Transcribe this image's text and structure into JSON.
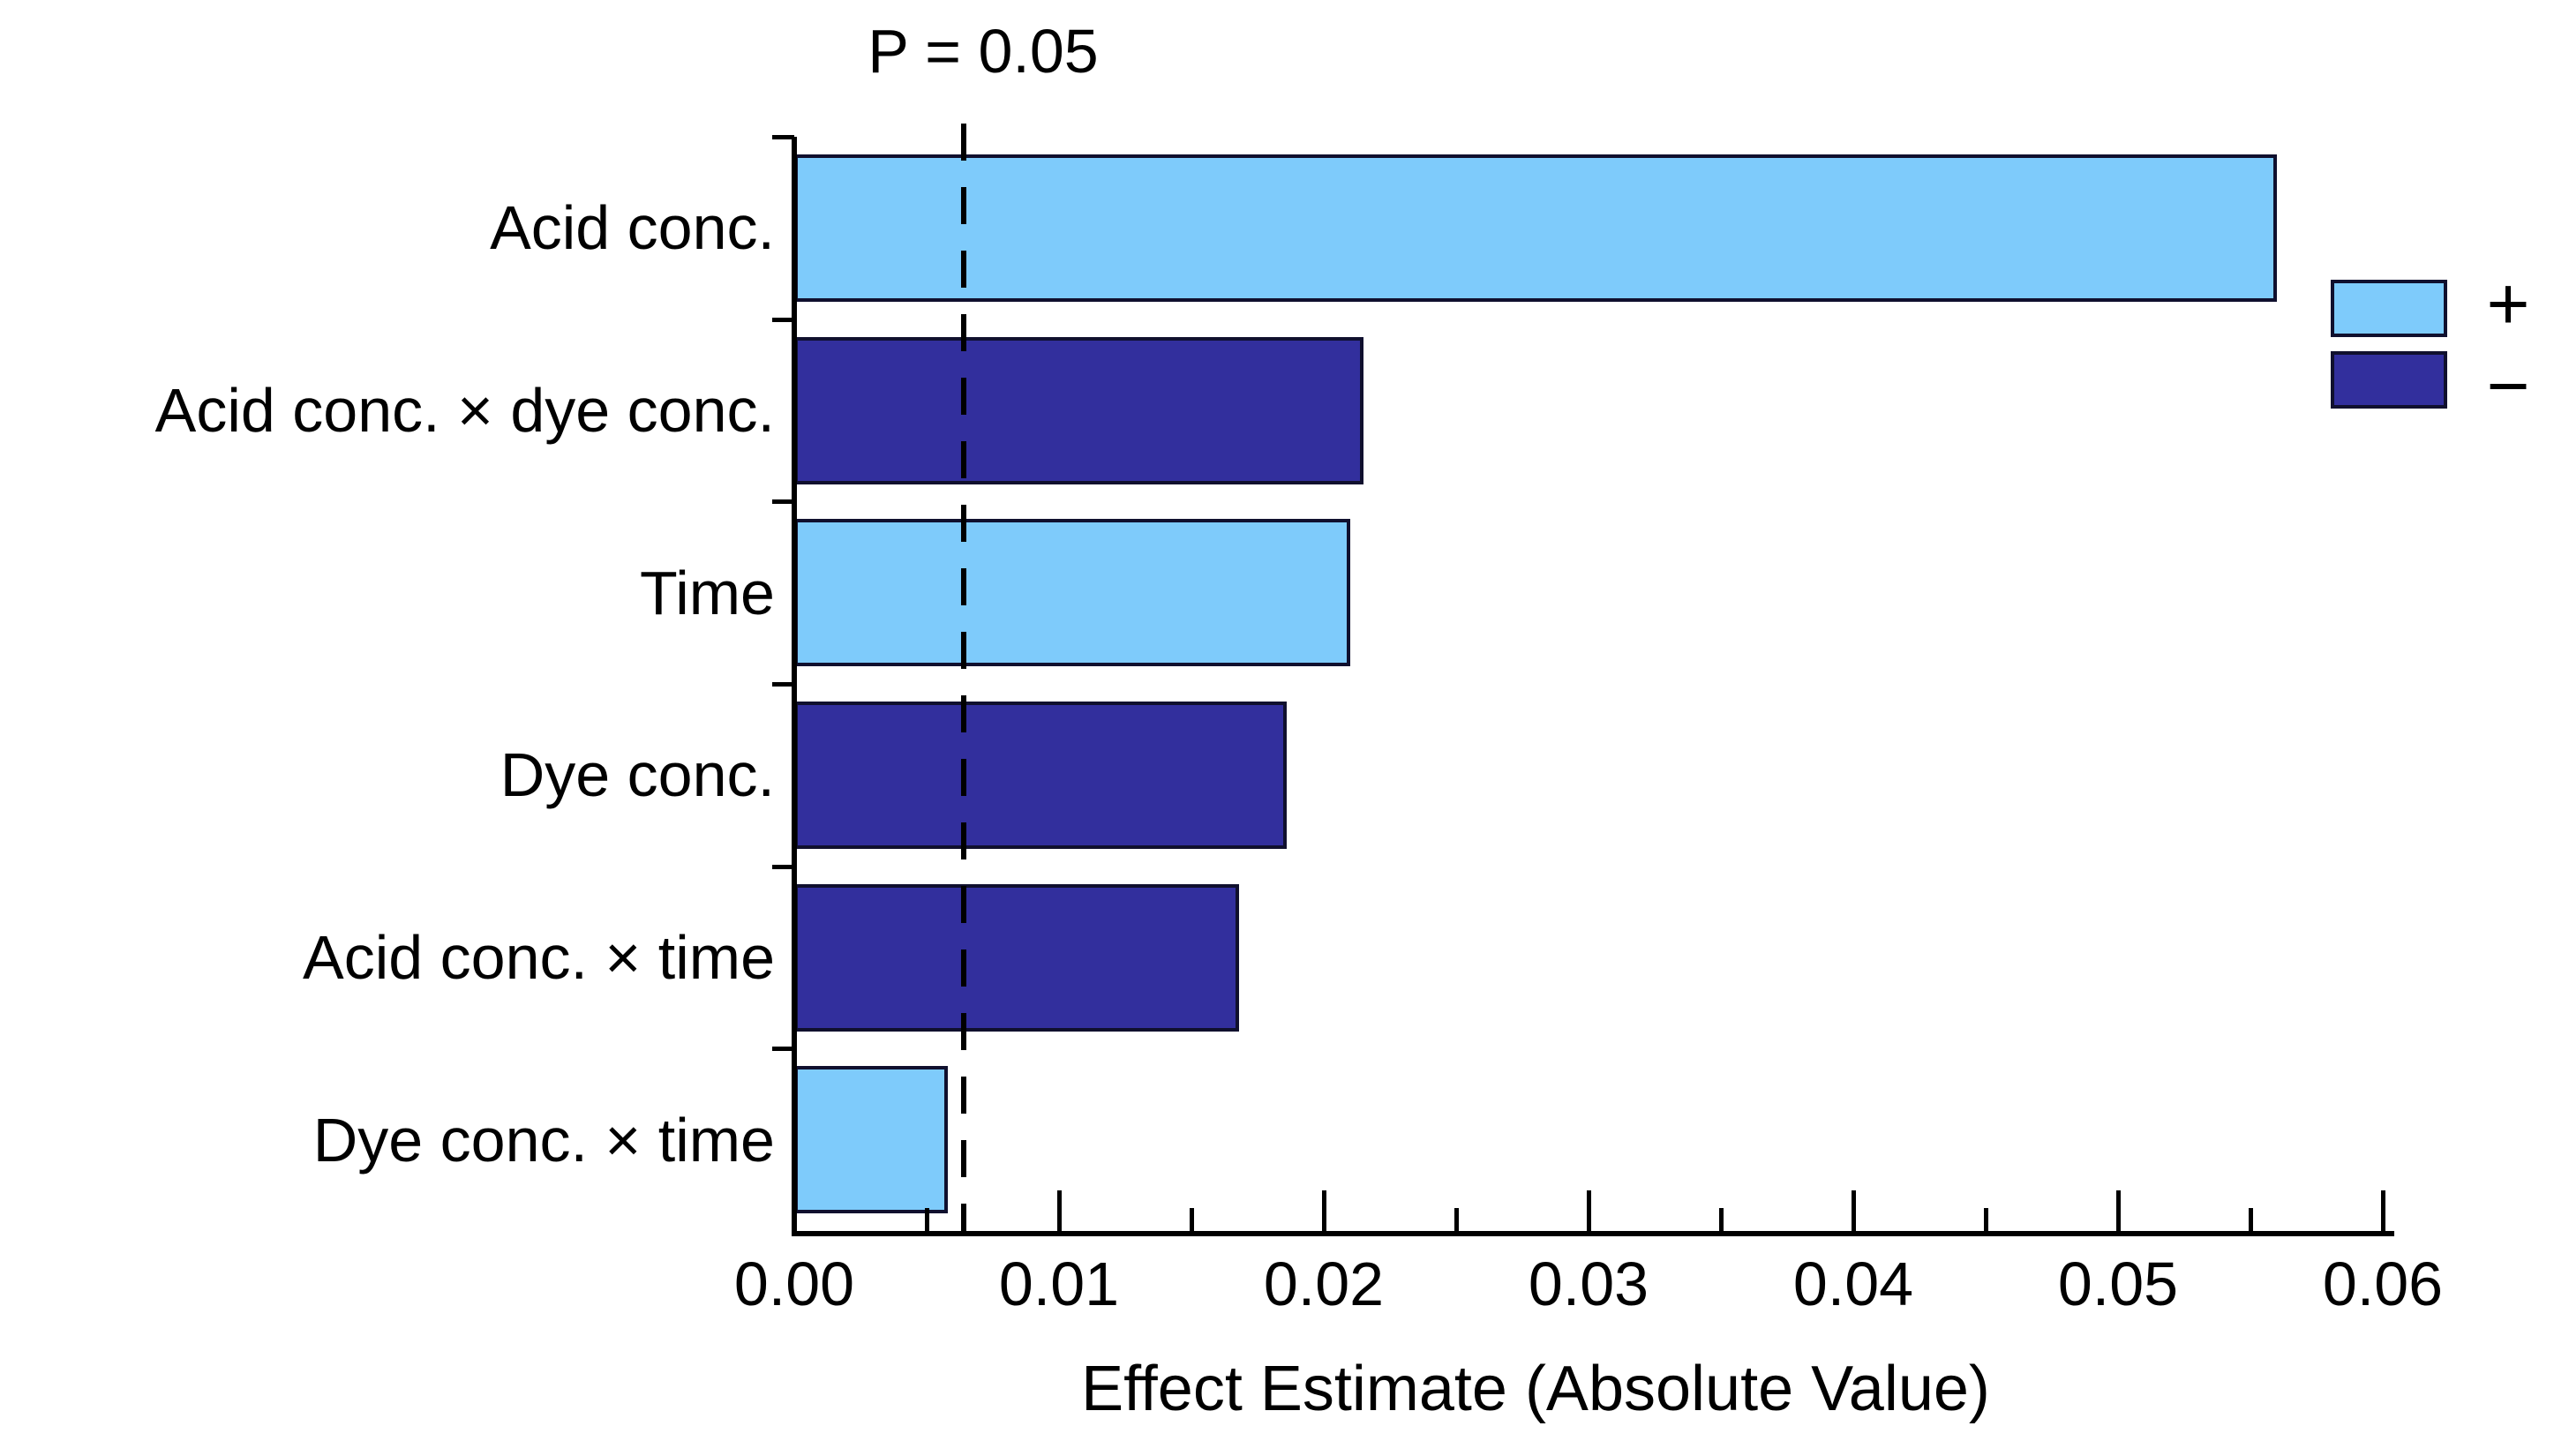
{
  "chart_data": {
    "type": "bar",
    "orientation": "horizontal",
    "categories": [
      "Acid conc.",
      "Acid conc. × dye conc.",
      "Time",
      "Dye conc.",
      "Acid conc. × time",
      "Dye conc. × time"
    ],
    "values": [
      0.056,
      0.0215,
      0.021,
      0.0186,
      0.0168,
      0.0058
    ],
    "signs": [
      "+",
      "−",
      "+",
      "−",
      "−",
      "+"
    ],
    "threshold_value": 0.0064,
    "threshold_label": "P = 0.05",
    "xlabel": "Effect Estimate (Absolute Value)",
    "xlim": [
      0,
      0.06
    ],
    "x_major_ticks": [
      0,
      0.01,
      0.02,
      0.03,
      0.04,
      0.05,
      0.06
    ],
    "x_tick_labels": [
      "0.00",
      "0.01",
      "0.02",
      "0.03",
      "0.04",
      "0.05",
      "0.06"
    ],
    "x_minor_tick_step": 0.005,
    "grid": false,
    "colors": {
      "positive": "#7ECBFB",
      "negative": "#322F9D",
      "bar_border": "#10102E",
      "axis": "#000000"
    },
    "legend": {
      "position": "right",
      "entries": [
        {
          "label": "+",
          "series": "positive"
        },
        {
          "label": "−",
          "series": "negative"
        }
      ]
    }
  }
}
